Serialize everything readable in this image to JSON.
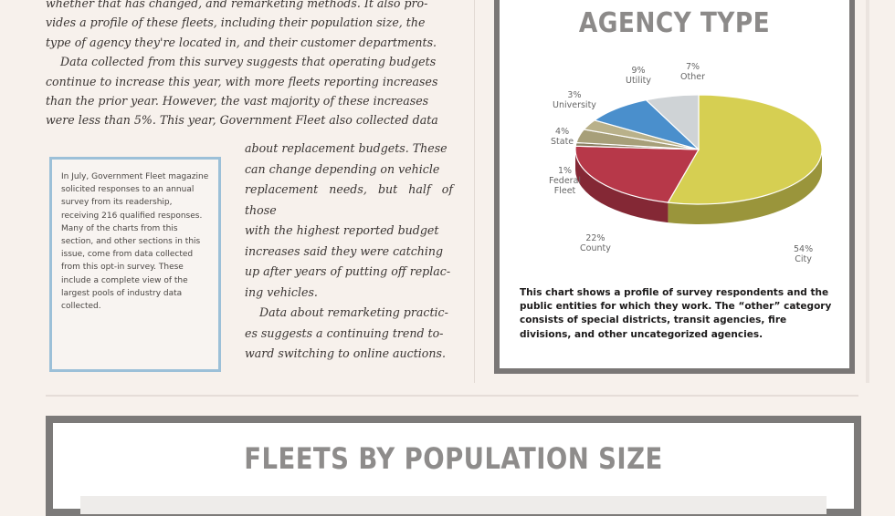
{
  "article": {
    "lines_top": [
      "whether that has changed, and remarketing methods. It also pro-",
      "vides a profile of these fleets, including their population size, the",
      "type of agency they're located in, and their customer departments."
    ],
    "paragraph2_full": [
      "Data collected from this survey suggests that operating budgets",
      "continue to increase this year, with more fleets reporting increases",
      "than the prior year. However, the vast majority of these increases",
      "were less than 5%. This year, Government Fleet also collected data"
    ],
    "paragraph2_wrap": [
      "about replacement budgets. These",
      "can change depending on vehicle",
      "replacement needs, but half of those",
      "with the highest reported budget",
      "increases said they were catching",
      "up after years of putting off replac-",
      "ing vehicles."
    ],
    "paragraph3_wrap": [
      "Data about remarketing practic-",
      "es suggests a continuing trend to-",
      "ward switching to online auctions."
    ]
  },
  "sidebar_note": {
    "text": "In July, Government Fleet magazine solicited responses to an annual survey from its readership, receiving 216 qualified responses. Many of the charts from this section, and other sections in this issue, come from data collected from this opt-in survey. These include a complete view of the largest pools of industry data collected."
  },
  "agency_chart": {
    "title": "AGENCY TYPE",
    "caption": "This chart shows a profile of survey respondents and the public entities for which they work. The “other” category consists of special districts, transit agencies, fire divisions, and other uncategorized agencies."
  },
  "chart_data": {
    "type": "pie",
    "title": "AGENCY TYPE",
    "series": [
      {
        "label": "City",
        "value": 54,
        "display": "54%\nCity",
        "color": "#d6cf52"
      },
      {
        "label": "County",
        "value": 22,
        "display": "22%\nCounty",
        "color": "#b73849"
      },
      {
        "label": "Federal Fleet",
        "value": 1,
        "display": "1%\nFederal\nFleet",
        "color": "#8a7f62"
      },
      {
        "label": "State",
        "value": 4,
        "display": "4%\nState",
        "color": "#a79f79"
      },
      {
        "label": "University",
        "value": 3,
        "display": "3%\nUniversity",
        "color": "#b9b18a"
      },
      {
        "label": "Utility",
        "value": 9,
        "display": "9%\nUtility",
        "color": "#4a8fcc"
      },
      {
        "label": "Other",
        "value": 7,
        "display": "7%\nOther",
        "color": "#cfd3d6"
      }
    ]
  },
  "fleet_section": {
    "title": "FLEETS BY POPULATION SIZE"
  }
}
